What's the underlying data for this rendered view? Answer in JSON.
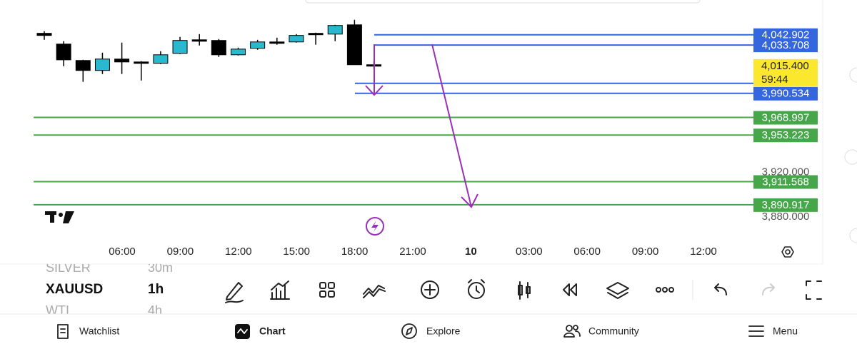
{
  "chart": {
    "ylim": [
      3857,
      4074
    ],
    "up_color": "#29b9cf",
    "down_color": "#000000",
    "candles": [
      {
        "open": 4044.2,
        "high": 4046.1,
        "low": 4038.4,
        "close": 4042.3
      },
      {
        "open": 4034.6,
        "high": 4037.2,
        "low": 4014.8,
        "close": 4020.5
      },
      {
        "open": 4019.9,
        "high": 4020.5,
        "low": 4000.8,
        "close": 4011.0
      },
      {
        "open": 4011.0,
        "high": 4026.9,
        "low": 4007.8,
        "close": 4021.2
      },
      {
        "open": 4021.2,
        "high": 4035.9,
        "low": 4007.8,
        "close": 4018.6
      },
      {
        "open": 4018.6,
        "high": 4019.3,
        "low": 4002.0,
        "close": 4018.0
      },
      {
        "open": 4017.4,
        "high": 4028.2,
        "low": 4016.7,
        "close": 4025.0
      },
      {
        "open": 4026.3,
        "high": 4041.0,
        "low": 4025.7,
        "close": 4037.8
      },
      {
        "open": 4038.4,
        "high": 4043.5,
        "low": 4033.3,
        "close": 4037.8
      },
      {
        "open": 4037.8,
        "high": 4039.1,
        "low": 4023.1,
        "close": 4025.0
      },
      {
        "open": 4025.0,
        "high": 4031.4,
        "low": 4024.4,
        "close": 4030.1
      },
      {
        "open": 4030.8,
        "high": 4038.4,
        "low": 4029.5,
        "close": 4036.5
      },
      {
        "open": 4036.5,
        "high": 4040.3,
        "low": 4034.0,
        "close": 4036.5
      },
      {
        "open": 4036.5,
        "high": 4043.5,
        "low": 4035.9,
        "close": 4042.3
      },
      {
        "open": 4044.2,
        "high": 4044.8,
        "low": 4034.0,
        "close": 4044.2
      },
      {
        "open": 4043.5,
        "high": 4051.8,
        "low": 4037.2,
        "close": 4051.2
      },
      {
        "open": 4051.8,
        "high": 4056.3,
        "low": 4016.1,
        "close": 4016.1
      },
      {
        "open": 4016.1,
        "high": 4019.3,
        "low": 4012.2,
        "close": 4015.4
      }
    ],
    "axis_labels": [
      {
        "value": 3920,
        "label": "3,920.000"
      },
      {
        "value": 3880,
        "label": "3,880.000"
      }
    ],
    "price_lines": [
      {
        "value": 4042.902,
        "label": "4,042.902",
        "color": "#3466e0"
      },
      {
        "value": 4033.708,
        "label": "4,033.708",
        "color": "#3466e0"
      },
      {
        "value": 3999.5,
        "color": "#3466e0"
      },
      {
        "value": 3990.534,
        "label": "3,990.534",
        "color": "#3466e0"
      },
      {
        "value": 3968.997,
        "label": "3,968.997",
        "color": "#46a74a"
      },
      {
        "value": 3953.223,
        "label": "3,953.223",
        "color": "#46a74a"
      },
      {
        "value": 3911.568,
        "label": "3,911.568",
        "color": "#46a74a"
      },
      {
        "value": 3890.917,
        "label": "3,890.917",
        "color": "#46a74a"
      }
    ],
    "current_price": {
      "value": 4015.4,
      "label": "4,015.400",
      "countdown": "59:44",
      "color": "#fce72f"
    },
    "time_labels": [
      "06:00",
      "09:00",
      "12:00",
      "15:00",
      "18:00",
      "21:00",
      "10",
      "03:00",
      "06:00",
      "09:00",
      "12:00"
    ]
  },
  "symbols": [
    {
      "name": "SILVER",
      "interval": "30m"
    },
    {
      "name": "XAUUSD",
      "interval": "1h"
    },
    {
      "name": "WTI",
      "interval": "4h"
    }
  ],
  "nav": [
    "Watchlist",
    "Chart",
    "Explore",
    "Community",
    "Menu"
  ]
}
